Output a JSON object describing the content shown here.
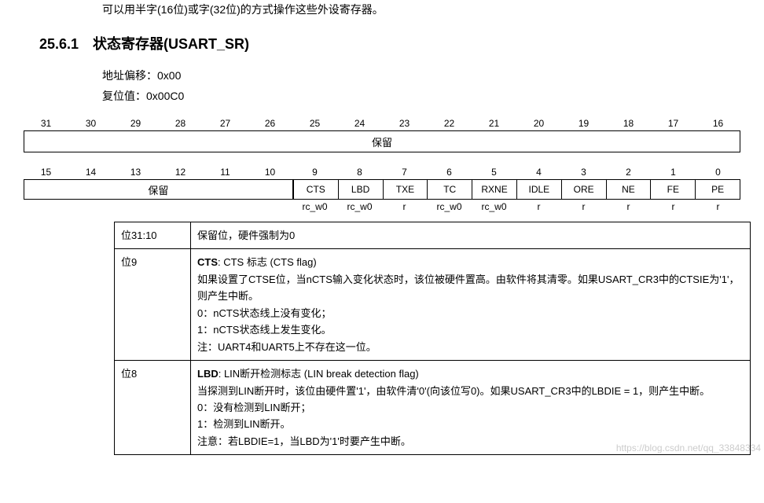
{
  "intro": "可以用半字(16位)或字(32位)的方式操作这些外设寄存器。",
  "section": {
    "number": "25.6.1",
    "title": "状态寄存器(USART_SR)"
  },
  "meta": {
    "addr_offset_label": "地址偏移：",
    "addr_offset": "0x00",
    "reset_label": "复位值：",
    "reset_value": "0x00C0"
  },
  "bits_high": [
    "31",
    "30",
    "29",
    "28",
    "27",
    "26",
    "25",
    "24",
    "23",
    "22",
    "21",
    "20",
    "19",
    "18",
    "17",
    "16"
  ],
  "bits_low": [
    "15",
    "14",
    "13",
    "12",
    "11",
    "10",
    "9",
    "8",
    "7",
    "6",
    "5",
    "4",
    "3",
    "2",
    "1",
    "0"
  ],
  "reserved_label_full": "保留",
  "reserved_label_left": "保留",
  "fields_low": [
    "CTS",
    "LBD",
    "TXE",
    "TC",
    "RXNE",
    "IDLE",
    "ORE",
    "NE",
    "FE",
    "PE"
  ],
  "access_low": [
    "rc_w0",
    "rc_w0",
    "r",
    "rc_w0",
    "rc_w0",
    "r",
    "r",
    "r",
    "r",
    "r"
  ],
  "desc_rows": [
    {
      "bit": "位31:10",
      "text": "保留位，硬件强制为0"
    },
    {
      "bit": "位9",
      "title_bold": "CTS",
      "title_rest": ": CTS 标志 (CTS flag)",
      "lines": [
        "如果设置了CTSE位，当nCTS输入变化状态时，该位被硬件置高。由软件将其清零。如果USART_CR3中的CTSIE为'1'，则产生中断。",
        "0：nCTS状态线上没有变化；",
        "1：nCTS状态线上发生变化。",
        "注：UART4和UART5上不存在这一位。"
      ]
    },
    {
      "bit": "位8",
      "title_bold": "LBD",
      "title_rest": ": LIN断开检测标志 (LIN break detection flag)",
      "lines": [
        "当探测到LIN断开时，该位由硬件置'1'，由软件清'0'(向该位写0)。如果USART_CR3中的LBDIE = 1，则产生中断。",
        "0：没有检测到LIN断开；",
        "1：检测到LIN断开。",
        "注意：若LBDIE=1，当LBD为'1'时要产生中断。"
      ]
    }
  ],
  "watermark": "https://blog.csdn.net/qq_33848334"
}
